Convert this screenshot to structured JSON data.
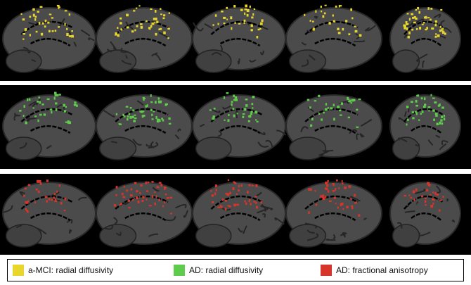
{
  "legend": {
    "items": [
      {
        "label": "a-MCI: radial diffusivity",
        "color": "#e8d62c"
      },
      {
        "label": "AD: radial diffusivity",
        "color": "#5fcb4b"
      },
      {
        "label": "AD: fractional anisotropy",
        "color": "#d8352a"
      }
    ]
  }
}
